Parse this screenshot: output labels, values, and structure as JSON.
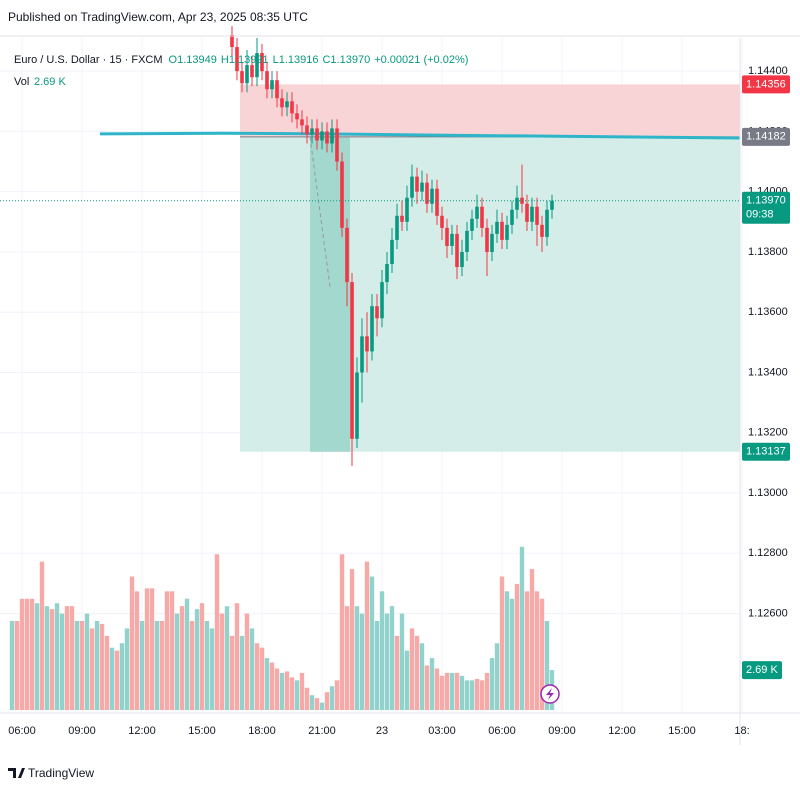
{
  "chart_data": {
    "type": "candlestick",
    "title": "Published on TradingView.com, Apr 23, 2025 08:35 UTC",
    "symbol": "Euro / U.S. Dollar · 15 · FXCM",
    "legend_values": [
      "O1.13949",
      "H1.13991",
      "L1.13916",
      "C1.13970",
      "+0.00021 (+0.02%)"
    ],
    "volume_label": "Vol",
    "volume_value": "2.69 K",
    "logo": "TradingView",
    "up_color": "#089981",
    "down_color": "#f23645",
    "grid": true,
    "x": [
      10.5,
      10.75,
      11,
      11.25,
      11.5,
      11.75,
      12,
      12.25,
      12.5,
      12.75,
      13,
      13.25,
      13.5,
      13.75,
      14,
      14.25,
      14.5,
      14.75,
      15,
      15.25,
      15.5,
      15.75,
      16,
      16.25,
      16.5,
      16.75,
      17,
      17.25,
      17.5,
      17.75,
      18,
      18.25,
      18.5,
      18.75,
      19,
      19.25,
      19.5,
      19.75,
      20,
      20.25,
      20.5,
      20.75,
      21,
      21.25,
      21.5,
      21.75,
      22,
      22.25,
      22.5,
      22.75,
      23,
      23.25,
      23.5,
      23.75,
      24,
      24.25,
      24.5,
      24.75,
      25,
      25.25,
      25.5,
      25.75,
      26,
      26.25,
      26.5
    ],
    "open": [
      1.1452,
      1.1448,
      1.144,
      1.1436,
      1.1442,
      1.1438,
      1.1446,
      1.144,
      1.1434,
      1.1437,
      1.1431,
      1.1428,
      1.143,
      1.1426,
      1.1424,
      1.1422,
      1.1419,
      1.1421,
      1.1417,
      1.142,
      1.1416,
      1.1421,
      1.141,
      1.1388,
      1.137,
      1.1318,
      1.134,
      1.1352,
      1.1347,
      1.1362,
      1.1358,
      1.137,
      1.1376,
      1.1384,
      1.1392,
      1.139,
      1.1398,
      1.1405,
      1.14,
      1.1403,
      1.1396,
      1.1401,
      1.1392,
      1.1388,
      1.1382,
      1.1386,
      1.1375,
      1.138,
      1.1387,
      1.1391,
      1.1395,
      1.1388,
      1.138,
      1.1386,
      1.139,
      1.1384,
      1.1389,
      1.1394,
      1.1398,
      1.1396,
      1.139,
      1.1395,
      1.1389,
      1.1385,
      1.1394
    ],
    "high": [
      1.1455,
      1.1451,
      1.1443,
      1.1447,
      1.1445,
      1.1451,
      1.1449,
      1.1443,
      1.144,
      1.144,
      1.1434,
      1.1433,
      1.1433,
      1.1429,
      1.1427,
      1.1425,
      1.1424,
      1.1424,
      1.1423,
      1.1423,
      1.1424,
      1.1424,
      1.1413,
      1.1391,
      1.1373,
      1.1345,
      1.1358,
      1.136,
      1.1366,
      1.1366,
      1.1374,
      1.138,
      1.1388,
      1.1396,
      1.1397,
      1.1402,
      1.1409,
      1.1408,
      1.1407,
      1.1406,
      1.1404,
      1.1404,
      1.1395,
      1.1391,
      1.1389,
      1.1389,
      1.1384,
      1.139,
      1.1394,
      1.1399,
      1.1398,
      1.1391,
      1.1389,
      1.1394,
      1.1393,
      1.1392,
      1.1397,
      1.1402,
      1.1409,
      1.1399,
      1.1398,
      1.1398,
      1.1392,
      1.1397,
      1.1399
    ],
    "low": [
      1.1445,
      1.1437,
      1.1433,
      1.1433,
      1.1435,
      1.1435,
      1.1437,
      1.1431,
      1.1431,
      1.1428,
      1.1425,
      1.1425,
      1.1423,
      1.1421,
      1.1419,
      1.1416,
      1.1416,
      1.1414,
      1.1414,
      1.1413,
      1.1413,
      1.1407,
      1.1385,
      1.1362,
      1.1309,
      1.1315,
      1.133,
      1.134,
      1.1344,
      1.1352,
      1.1355,
      1.1366,
      1.1373,
      1.1381,
      1.1387,
      1.1387,
      1.1395,
      1.1396,
      1.1397,
      1.1393,
      1.1393,
      1.1389,
      1.1384,
      1.1378,
      1.1379,
      1.1371,
      1.1372,
      1.1377,
      1.1384,
      1.1388,
      1.1385,
      1.1372,
      1.1377,
      1.1383,
      1.1381,
      1.1381,
      1.1386,
      1.1391,
      1.1393,
      1.1387,
      1.1387,
      1.1382,
      1.138,
      1.1382,
      1.1391
    ],
    "close": [
      1.1448,
      1.144,
      1.1436,
      1.1442,
      1.1438,
      1.1446,
      1.144,
      1.1434,
      1.1437,
      1.1431,
      1.1428,
      1.143,
      1.1426,
      1.1424,
      1.1422,
      1.1419,
      1.1421,
      1.1417,
      1.142,
      1.1416,
      1.1421,
      1.141,
      1.1388,
      1.137,
      1.1318,
      1.134,
      1.1352,
      1.1347,
      1.1362,
      1.1358,
      1.137,
      1.1376,
      1.1384,
      1.1392,
      1.139,
      1.1398,
      1.1405,
      1.14,
      1.1403,
      1.1396,
      1.1401,
      1.1392,
      1.1388,
      1.1382,
      1.1386,
      1.1375,
      1.138,
      1.1387,
      1.1391,
      1.1395,
      1.1388,
      1.138,
      1.1386,
      1.139,
      1.1384,
      1.1389,
      1.1394,
      1.1398,
      1.1396,
      1.139,
      1.1395,
      1.1389,
      1.1385,
      1.1394,
      1.1397
    ],
    "xlim": [
      -0.7,
      35.9
    ],
    "xticks": [
      {
        "value": 0,
        "label": "06:00"
      },
      {
        "value": 3,
        "label": "09:00"
      },
      {
        "value": 6,
        "label": "12:00"
      },
      {
        "value": 9,
        "label": "15:00"
      },
      {
        "value": 12,
        "label": "18:00"
      },
      {
        "value": 15,
        "label": "21:00"
      },
      {
        "value": 18,
        "label": "23"
      },
      {
        "value": 21,
        "label": "03:00"
      },
      {
        "value": 24,
        "label": "06:00"
      },
      {
        "value": 27,
        "label": "09:00"
      },
      {
        "value": 30,
        "label": "12:00"
      },
      {
        "value": 33,
        "label": "15:00"
      },
      {
        "value": 36,
        "label": "18:"
      }
    ],
    "ylim": [
      1.1228,
      1.1451
    ],
    "yticks": [
      {
        "value": 1.126,
        "label": "1.12600"
      },
      {
        "value": 1.128,
        "label": "1.12800"
      },
      {
        "value": 1.13,
        "label": "1.13000"
      },
      {
        "value": 1.132,
        "label": "1.13200"
      },
      {
        "value": 1.134,
        "label": "1.13400"
      },
      {
        "value": 1.136,
        "label": "1.13600"
      },
      {
        "value": 1.138,
        "label": "1.13800"
      },
      {
        "value": 1.14,
        "label": "1.14000"
      },
      {
        "value": 1.142,
        "label": "1.14200"
      },
      {
        "value": 1.144,
        "label": "1.14400"
      }
    ],
    "position": {
      "stop": 1.14356,
      "entry": 1.14182,
      "target": 1.13137,
      "x": [
        10.9,
        35.9
      ],
      "trade_x": [
        14.4,
        16.4
      ],
      "stop_color": "#f9d4d6",
      "target_color": "#d5ede8",
      "trade_color": "#a3d8cf"
    },
    "last_price": {
      "value": 1.1397,
      "label": "1.13970",
      "countdown": "09:38"
    },
    "ma": {
      "x": [
        3.9,
        10,
        15,
        20,
        25,
        30,
        35.9
      ],
      "values": [
        1.14192,
        1.14194,
        1.14192,
        1.14188,
        1.14185,
        1.14182,
        1.14178
      ],
      "color": "#2eb5c9"
    },
    "volume": {
      "ylim": [
        0,
        12
      ],
      "x": [
        -0.5,
        -0.25,
        0,
        0.25,
        0.5,
        0.75,
        1,
        1.25,
        1.5,
        1.75,
        2,
        2.25,
        2.5,
        2.75,
        3,
        3.25,
        3.5,
        3.75,
        4,
        4.25,
        4.5,
        4.75,
        5,
        5.25,
        5.5,
        5.75,
        6,
        6.25,
        6.5,
        6.75,
        7,
        7.25,
        7.5,
        7.75,
        8,
        8.25,
        8.5,
        8.75,
        9,
        9.25,
        9.5,
        9.75,
        10,
        10.25,
        10.5,
        10.75,
        11,
        11.25,
        11.5,
        11.75,
        12,
        12.25,
        12.5,
        12.75,
        13,
        13.25,
        13.5,
        13.75,
        14,
        14.25,
        14.5,
        14.75,
        15,
        15.25,
        15.5,
        15.75,
        16,
        16.25,
        16.5,
        16.75,
        17,
        17.25,
        17.5,
        17.75,
        18,
        18.25,
        18.5,
        18.75,
        19,
        19.25,
        19.5,
        19.75,
        20,
        20.25,
        20.5,
        20.75,
        21,
        21.25,
        21.5,
        21.75,
        22,
        22.25,
        22.5,
        22.75,
        23,
        23.25,
        23.5,
        23.75,
        24,
        24.25,
        24.5,
        24.75,
        25,
        25.25,
        25.5,
        25.75,
        26,
        26.25,
        26.5
      ],
      "values": [
        6.0,
        6.0,
        7.5,
        7.5,
        7.5,
        7.2,
        10.0,
        7.0,
        6.8,
        7.2,
        6.5,
        7.0,
        7.0,
        6.0,
        6.0,
        6.5,
        5.5,
        6.0,
        5.8,
        5.0,
        4.2,
        4.0,
        4.5,
        5.5,
        9.0,
        8.0,
        6.0,
        8.2,
        8.2,
        6.0,
        6.0,
        8.0,
        8.0,
        6.5,
        7.0,
        7.5,
        6.0,
        6.8,
        7.2,
        6.0,
        5.5,
        10.5,
        6.5,
        7.0,
        5.0,
        7.2,
        5.0,
        6.5,
        5.5,
        4.5,
        4.2,
        3.5,
        3.2,
        2.8,
        2.5,
        2.6,
        2.2,
        2.0,
        2.5,
        1.5,
        1.0,
        0.8,
        0.5,
        1.2,
        1.6,
        2.0,
        10.5,
        7.0,
        9.5,
        7.0,
        6.5,
        10.0,
        9.0,
        6.0,
        8.0,
        6.5,
        7.0,
        5.0,
        6.5,
        4.0,
        5.5,
        5.0,
        4.5,
        3.0,
        3.5,
        2.8,
        2.3,
        2.5,
        2.5,
        2.5,
        2.3,
        2.0,
        2.0,
        2.1,
        2.0,
        2.5,
        3.5,
        4.5,
        9.0,
        8.0,
        7.5,
        8.5,
        11.0,
        8.0,
        9.5,
        8.0,
        7.5,
        6.0,
        2.69
      ],
      "colors": [
        "#92d2cc",
        "#f7a9a7",
        "#f7a9a7",
        "#f7a9a7",
        "#f7a9a7",
        "#92d2cc",
        "#f7a9a7",
        "#92d2cc",
        "#f7a9a7",
        "#92d2cc",
        "#92d2cc",
        "#f7a9a7",
        "#f7a9a7",
        "#92d2cc",
        "#f7a9a7",
        "#92d2cc",
        "#f7a9a7",
        "#92d2cc",
        "#f7a9a7",
        "#f7a9a7",
        "#92d2cc",
        "#f7a9a7",
        "#92d2cc",
        "#92d2cc",
        "#f7a9a7",
        "#f7a9a7",
        "#92d2cc",
        "#f7a9a7",
        "#f7a9a7",
        "#92d2cc",
        "#f7a9a7",
        "#f7a9a7",
        "#f7a9a7",
        "#92d2cc",
        "#f7a9a7",
        "#92d2cc",
        "#f7a9a7",
        "#92d2cc",
        "#f7a9a7",
        "#92d2cc",
        "#92d2cc",
        "#f7a9a7",
        "#f7a9a7",
        "#92d2cc",
        "#f7a9a7",
        "#f7a9a7",
        "#92d2cc",
        "#f7a9a7",
        "#92d2cc",
        "#f7a9a7",
        "#f7a9a7",
        "#92d2cc",
        "#f7a9a7",
        "#f7a9a7",
        "#92d2cc",
        "#f7a9a7",
        "#f7a9a7",
        "#92d2cc",
        "#f7a9a7",
        "#f7a9a7",
        "#92d2cc",
        "#f7a9a7",
        "#92d2cc",
        "#f7a9a7",
        "#92d2cc",
        "#f7a9a7",
        "#f7a9a7",
        "#f7a9a7",
        "#f7a9a7",
        "#92d2cc",
        "#92d2cc",
        "#f7a9a7",
        "#92d2cc",
        "#92d2cc",
        "#92d2cc",
        "#92d2cc",
        "#92d2cc",
        "#f7a9a7",
        "#92d2cc",
        "#92d2cc",
        "#f7a9a7",
        "#f7a9a7",
        "#92d2cc",
        "#f7a9a7",
        "#92d2cc",
        "#f7a9a7",
        "#f7a9a7",
        "#f7a9a7",
        "#92d2cc",
        "#f7a9a7",
        "#92d2cc",
        "#92d2cc",
        "#92d2cc",
        "#f7a9a7",
        "#f7a9a7",
        "#f7a9a7",
        "#92d2cc",
        "#92d2cc",
        "#f7a9a7",
        "#92d2cc",
        "#92d2cc",
        "#f7a9a7",
        "#92d2cc",
        "#f7a9a7",
        "#f7a9a7",
        "#f7a9a7",
        "#f7a9a7",
        "#92d2cc",
        "#92d2cc"
      ]
    }
  }
}
